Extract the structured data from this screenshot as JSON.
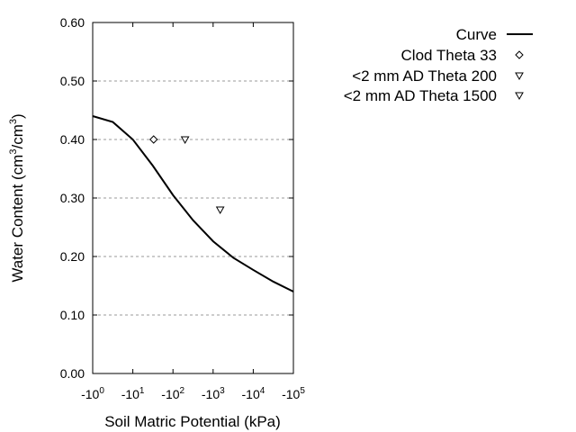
{
  "chart_data": {
    "type": "scatter",
    "xlabel": "Soil Matric Potential (kPa)",
    "ylabel_parts": [
      "Water Content (cm",
      "3",
      "/cm",
      "3",
      ")"
    ],
    "x_scale": "log",
    "xlim": [
      1,
      100000
    ],
    "ylim": [
      0,
      0.6
    ],
    "x_ticks": [
      {
        "value": 1,
        "base": "-10",
        "exp": "0"
      },
      {
        "value": 10,
        "base": "-10",
        "exp": "1"
      },
      {
        "value": 100,
        "base": "-10",
        "exp": "2"
      },
      {
        "value": 1000,
        "base": "-10",
        "exp": "3"
      },
      {
        "value": 10000,
        "base": "-10",
        "exp": "4"
      },
      {
        "value": 100000,
        "base": "-10",
        "exp": "5"
      }
    ],
    "y_ticks": [
      "0.00",
      "0.10",
      "0.20",
      "0.30",
      "0.40",
      "0.50",
      "0.60"
    ],
    "grid": "horizontal dashed",
    "legend_position": "right",
    "series": [
      {
        "name": "Curve",
        "kind": "line",
        "color": "#000000",
        "x": [
          1,
          3.16,
          10,
          31.6,
          100,
          316,
          1000,
          3162,
          10000,
          31623,
          100000
        ],
        "y": [
          0.44,
          0.43,
          0.4,
          0.355,
          0.305,
          0.262,
          0.226,
          0.198,
          0.177,
          0.157,
          0.14
        ]
      },
      {
        "name": "Clod Theta 33",
        "kind": "point",
        "marker": "diamond",
        "x": [
          33
        ],
        "y": [
          0.4
        ]
      },
      {
        "name": "<2 mm AD Theta 200",
        "kind": "point",
        "marker": "triangle-down",
        "x": [
          200
        ],
        "y": [
          0.4
        ]
      },
      {
        "name": "<2 mm AD Theta 1500",
        "kind": "point",
        "marker": "triangle-down",
        "x": [
          1500
        ],
        "y": [
          0.28
        ]
      }
    ]
  }
}
